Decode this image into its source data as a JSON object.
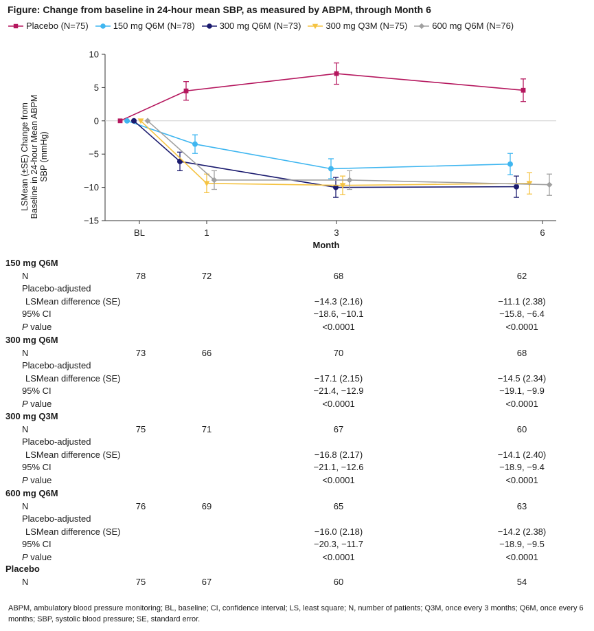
{
  "title": "Figure: Change from baseline in 24-hour mean SBP, as measured by ABPM, through Month 6",
  "chart_data": {
    "type": "line",
    "x": [
      "BL",
      "1",
      "3",
      "6"
    ],
    "xlabel": "Month",
    "ylabel": "LSMean (±SE) Change from Baseline in 24-hour Mean ABPM SBP (mmHg)",
    "ylim": [
      -15,
      10
    ],
    "yticks": [
      "10",
      "5",
      "0",
      "−5",
      "−10",
      "−15"
    ],
    "legend_position": "top",
    "series": [
      {
        "name": "Placebo (N=75)",
        "color": "#b5175e",
        "marker": "square",
        "values": [
          0,
          4.5,
          7.1,
          4.6
        ],
        "se": [
          0,
          1.4,
          1.6,
          1.7
        ]
      },
      {
        "name": "150 mg Q6M (N=78)",
        "color": "#3fb6f0",
        "marker": "circle",
        "values": [
          0,
          -3.5,
          -7.2,
          -6.5
        ],
        "se": [
          0,
          1.4,
          1.5,
          1.6
        ]
      },
      {
        "name": "300 mg Q6M (N=73)",
        "color": "#1a1a6e",
        "marker": "circle",
        "values": [
          0,
          -6.1,
          -10.0,
          -9.9
        ],
        "se": [
          0,
          1.4,
          1.5,
          1.6
        ]
      },
      {
        "name": "300 mg Q3M (N=75)",
        "color": "#f5c342",
        "marker": "triangle-down",
        "values": [
          0,
          -9.4,
          -9.7,
          -9.4
        ],
        "se": [
          0,
          1.4,
          1.4,
          1.6
        ]
      },
      {
        "name": "600 mg Q6M (N=76)",
        "color": "#a0a0a0",
        "marker": "diamond",
        "values": [
          0,
          -8.9,
          -8.9,
          -9.6
        ],
        "se": [
          0,
          1.4,
          1.4,
          1.6
        ]
      }
    ]
  },
  "table": {
    "groups": [
      {
        "name": "150 mg Q6M",
        "n": [
          "78",
          "72",
          "68",
          "62"
        ],
        "diff": [
          "−14.3 (2.16)",
          "−11.1 (2.38)"
        ],
        "ci": [
          "−18.6, −10.1",
          "−15.8, −6.4"
        ],
        "p": [
          "<0.0001",
          "<0.0001"
        ]
      },
      {
        "name": "300 mg Q6M",
        "n": [
          "73",
          "66",
          "70",
          "68"
        ],
        "diff": [
          "−17.1 (2.15)",
          "−14.5 (2.34)"
        ],
        "ci": [
          "−21.4, −12.9",
          "−19.1, −9.9"
        ],
        "p": [
          "<0.0001",
          "<0.0001"
        ]
      },
      {
        "name": "300 mg Q3M",
        "n": [
          "75",
          "71",
          "67",
          "60"
        ],
        "diff": [
          "−16.8 (2.17)",
          "−14.1 (2.40)"
        ],
        "ci": [
          "−21.1, −12.6",
          "−18.9, −9.4"
        ],
        "p": [
          "<0.0001",
          "<0.0001"
        ]
      },
      {
        "name": "600 mg Q6M",
        "n": [
          "76",
          "69",
          "65",
          "63"
        ],
        "diff": [
          "−16.0 (2.18)",
          "−14.2 (2.38)"
        ],
        "ci": [
          "−20.3, −11.7",
          "−18.9, −9.5"
        ],
        "p": [
          "<0.0001",
          "<0.0001"
        ]
      }
    ],
    "placebo": {
      "name": "Placebo",
      "n": [
        "75",
        "67",
        "60",
        "54"
      ]
    },
    "labels": {
      "n": "N",
      "adj": "Placebo-adjusted",
      "diff": "LSMean difference (SE)",
      "ci": "95% CI",
      "p_italic": "P",
      "p_rest": " value"
    }
  },
  "footnote": "ABPM, ambulatory blood pressure monitoring; BL, baseline; CI, confidence interval; LS, least square; N, number of patients; Q3M, once every 3 months; Q6M, once every 6 months; SBP, systolic blood pressure; SE, standard error."
}
